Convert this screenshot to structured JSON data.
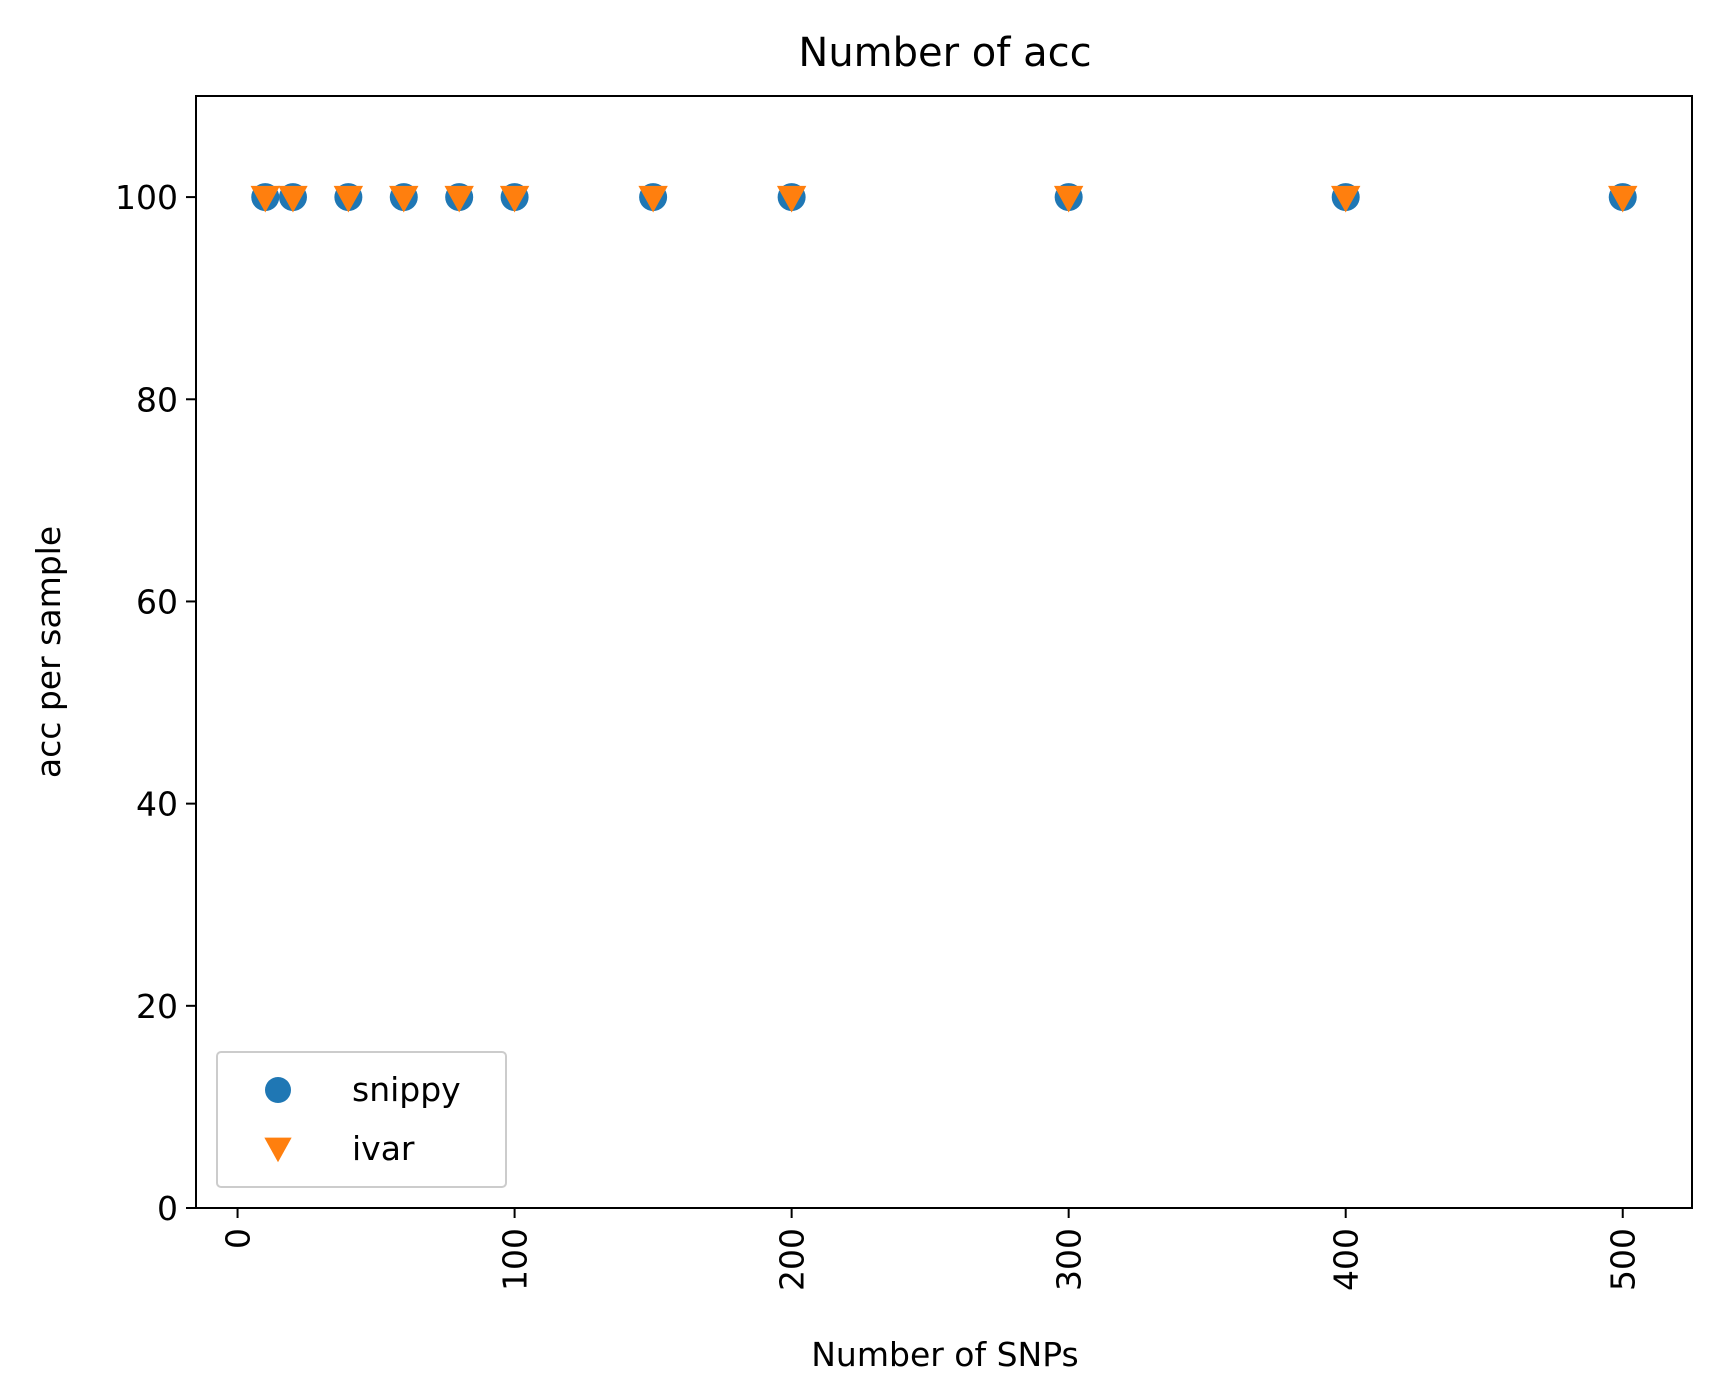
{
  "chart_data": {
    "type": "scatter",
    "title": "Number of acc",
    "xlabel": "Number of SNPs",
    "ylabel": "acc per sample",
    "xlim": [
      -15,
      525
    ],
    "ylim": [
      0,
      110
    ],
    "xticks": [
      0,
      100,
      200,
      300,
      400,
      500
    ],
    "yticks": [
      0,
      20,
      40,
      60,
      80,
      100
    ],
    "xtick_rotation": "vertical",
    "grid": false,
    "legend_position": "lower-left",
    "series": [
      {
        "name": "snippy",
        "marker": "circle",
        "color": "#1f77b4",
        "x": [
          10,
          20,
          40,
          60,
          80,
          100,
          150,
          200,
          300,
          400,
          500
        ],
        "y": [
          100,
          100,
          100,
          100,
          100,
          100,
          100,
          100,
          100,
          100,
          100
        ]
      },
      {
        "name": "ivar",
        "marker": "triangle-down",
        "color": "#ff7f0e",
        "x": [
          10,
          20,
          40,
          60,
          80,
          100,
          150,
          200,
          300,
          400,
          500
        ],
        "y": [
          100,
          100,
          100,
          100,
          100,
          100,
          100,
          100,
          100,
          100,
          100
        ]
      }
    ]
  }
}
